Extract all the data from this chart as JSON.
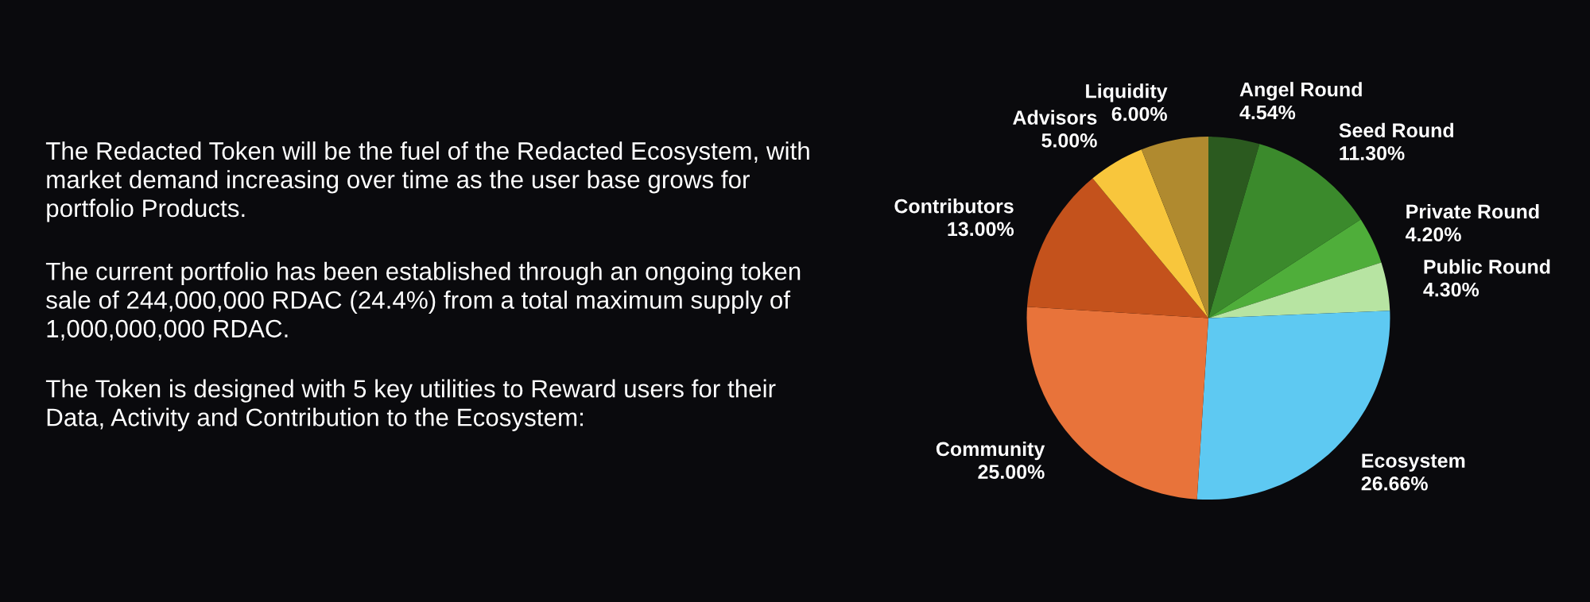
{
  "chart_data": {
    "type": "pie",
    "categories": [
      "Angel Round",
      "Seed Round",
      "Private Round",
      "Public Round",
      "Ecosystem",
      "Community",
      "Contributors",
      "Advisors",
      "Liquidity"
    ],
    "values": [
      4.54,
      11.3,
      4.2,
      4.3,
      26.66,
      25.0,
      13.0,
      5.0,
      6.0
    ],
    "value_labels": [
      "4.54%",
      "11.30%",
      "4.20%",
      "4.30%",
      "26.66%",
      "25.00%",
      "13.00%",
      "5.00%",
      "6.00%"
    ],
    "colors": [
      "#2b5a1f",
      "#3b8a2c",
      "#4fae3a",
      "#b7e4a2",
      "#5ec9f2",
      "#e8733a",
      "#c4521c",
      "#f8c63c",
      "#b08a2f"
    ],
    "annotations": [
      "The Redacted Token will be the fuel of the Redacted Ecosystem, with market demand increasing over time as the user base grows for portfolio Products.",
      "The current portfolio has been established through an ongoing token sale of 244,000,000 RDAC (24.4%) from a total maximum supply of 1,000,000,000 RDAC.",
      "The Token is designed with 5 key utilities to Reward users for their Data, Activity and Contribution to the Ecosystem:"
    ]
  }
}
